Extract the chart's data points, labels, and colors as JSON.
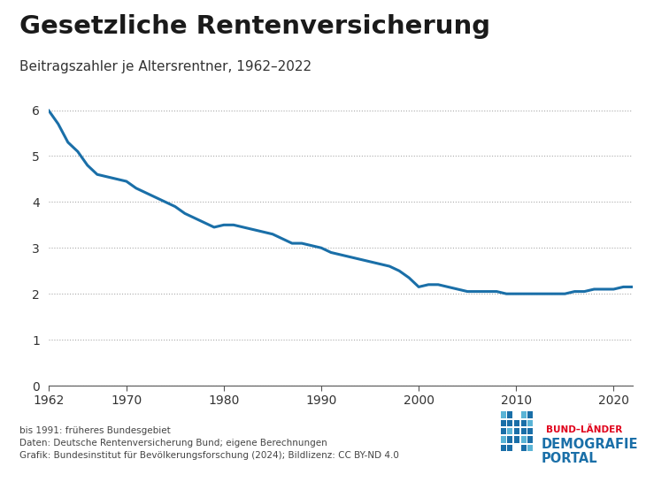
{
  "title": "Gesetzliche Rentenversicherung",
  "subtitle": "Beitragszahler je Altersrentner, 1962–2022",
  "line_color": "#1a6fa8",
  "line_width": 2.2,
  "background_color": "#ffffff",
  "xlim": [
    1962,
    2022
  ],
  "ylim": [
    0,
    6.3
  ],
  "yticks": [
    0,
    1,
    2,
    3,
    4,
    5,
    6
  ],
  "xticks": [
    1962,
    1970,
    1980,
    1990,
    2000,
    2010,
    2020
  ],
  "grid_color": "#aaaaaa",
  "footnote1": "bis 1991: früheres Bundesgebiet",
  "footnote2": "Daten: Deutsche Rentenversicherung Bund; eigene Berechnungen",
  "footnote3": "Grafik: Bundesinstitut für Bevölkerungsforschung (2024); Bildlizenz: CC BY-ND 4.0",
  "logo_text1": "BUND–LÄNDER",
  "logo_text2": "DEMOGRAFIE",
  "logo_text3": "PORTAL",
  "years": [
    1962,
    1963,
    1964,
    1965,
    1966,
    1967,
    1968,
    1969,
    1970,
    1971,
    1972,
    1973,
    1974,
    1975,
    1976,
    1977,
    1978,
    1979,
    1980,
    1981,
    1982,
    1983,
    1984,
    1985,
    1986,
    1987,
    1988,
    1989,
    1990,
    1991,
    1992,
    1993,
    1994,
    1995,
    1996,
    1997,
    1998,
    1999,
    2000,
    2001,
    2002,
    2003,
    2004,
    2005,
    2006,
    2007,
    2008,
    2009,
    2010,
    2011,
    2012,
    2013,
    2014,
    2015,
    2016,
    2017,
    2018,
    2019,
    2020,
    2021,
    2022
  ],
  "values": [
    6.0,
    5.7,
    5.3,
    5.1,
    4.8,
    4.6,
    4.55,
    4.5,
    4.45,
    4.3,
    4.2,
    4.1,
    4.0,
    3.9,
    3.75,
    3.65,
    3.55,
    3.45,
    3.5,
    3.5,
    3.45,
    3.4,
    3.35,
    3.3,
    3.2,
    3.1,
    3.1,
    3.05,
    3.0,
    2.9,
    2.85,
    2.8,
    2.75,
    2.7,
    2.65,
    2.6,
    2.5,
    2.35,
    2.15,
    2.2,
    2.2,
    2.15,
    2.1,
    2.05,
    2.05,
    2.05,
    2.05,
    2.0,
    2.0,
    2.0,
    2.0,
    2.0,
    2.0,
    2.0,
    2.05,
    2.05,
    2.1,
    2.1,
    2.1,
    2.15,
    2.15
  ]
}
